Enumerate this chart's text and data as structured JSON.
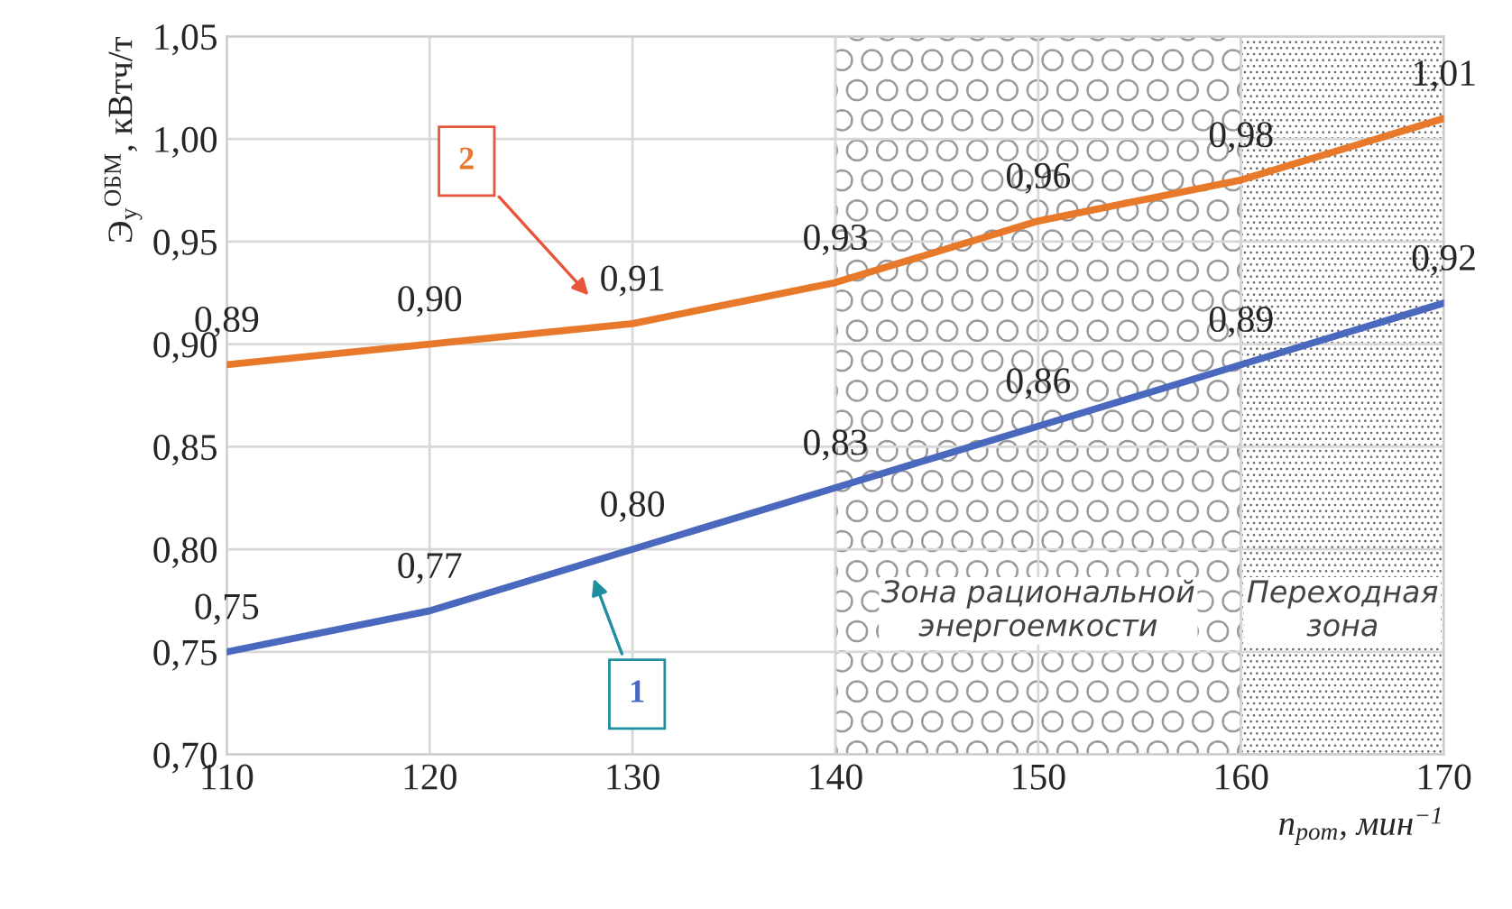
{
  "chart_data": {
    "type": "line",
    "ylabel": "Э$_{у}$$^{ОБМ}$, кВтч/т",
    "xlabel": "n$_{рот}$, мин$^{−1}$",
    "x": [
      110,
      120,
      130,
      140,
      150,
      160,
      170
    ],
    "series": [
      {
        "name": "1",
        "color": "#4a68bd",
        "values": [
          0.75,
          0.77,
          0.8,
          0.83,
          0.86,
          0.89,
          0.92
        ],
        "value_labels": [
          "0,75",
          "0,77",
          "0,80",
          "0,83",
          "0,86",
          "0,89",
          "0,92"
        ]
      },
      {
        "name": "2",
        "color": "#e8782a",
        "values": [
          0.89,
          0.9,
          0.91,
          0.93,
          0.96,
          0.98,
          1.01
        ],
        "value_labels": [
          "0,89",
          "0,90",
          "0,91",
          "0,93",
          "0,96",
          "0,98",
          "1,01"
        ]
      }
    ],
    "xlim": [
      110,
      170
    ],
    "xticks": [
      110,
      120,
      130,
      140,
      150,
      160,
      170
    ],
    "ylim": [
      0.7,
      1.05
    ],
    "yticks": [
      {
        "value": 0.7,
        "label": "0,70"
      },
      {
        "value": 0.75,
        "label": "0,75"
      },
      {
        "value": 0.8,
        "label": "0,80"
      },
      {
        "value": 0.85,
        "label": "0,85"
      },
      {
        "value": 0.9,
        "label": "0,90"
      },
      {
        "value": 0.95,
        "label": "0,95"
      },
      {
        "value": 1.0,
        "label": "1,00"
      },
      {
        "value": 1.05,
        "label": "1,05"
      }
    ],
    "bands": [
      {
        "axis": "x",
        "from": 140,
        "to": 160,
        "label": "Зона рациональной\nэнергоемкости",
        "color": "#9a9a9a"
      },
      {
        "axis": "x",
        "from": 160,
        "to": 170,
        "label": "Переходная\nзона",
        "color": "#6a6a6a"
      }
    ],
    "grid": true,
    "marker": "none",
    "line_style": "solid"
  }
}
